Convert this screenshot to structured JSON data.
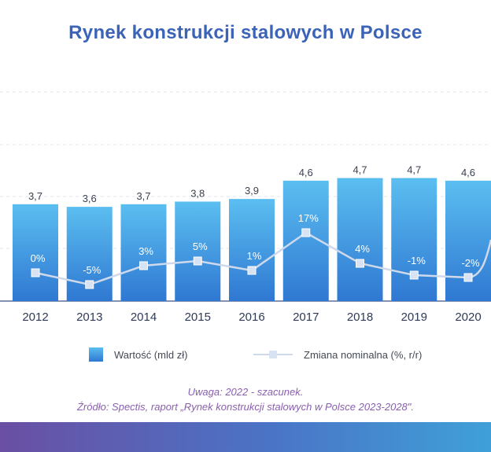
{
  "title": "Rynek konstrukcji stalowych w Polsce",
  "chart_data": {
    "type": "bar",
    "categories": [
      "2012",
      "2013",
      "2014",
      "2015",
      "2016",
      "2017",
      "2018",
      "2019",
      "2020"
    ],
    "series": [
      {
        "name": "Wartość (mld zł)",
        "type": "bar",
        "values": [
          3.7,
          3.6,
          3.7,
          3.8,
          3.9,
          4.6,
          4.7,
          4.7,
          4.6
        ],
        "labels": [
          "3,7",
          "3,6",
          "3,7",
          "3,8",
          "3,9",
          "4,6",
          "4,7",
          "4,7",
          "4,6"
        ],
        "color": "#3a8fe0"
      },
      {
        "name": "Zmiana nominalna (%, r/r)",
        "type": "line",
        "values": [
          0,
          -5,
          3,
          5,
          1,
          17,
          4,
          -1,
          -2
        ],
        "labels": [
          "0%",
          "-5%",
          "3%",
          "5%",
          "1%",
          "17%",
          "4%",
          "-1%",
          "-2%"
        ],
        "color": "#cfd9ec"
      }
    ],
    "grid": true,
    "legend_position": "bottom"
  },
  "legend": {
    "bars_label": "Wartość (mld zł)",
    "line_label": "Zmiana nominalna (%, r/r)"
  },
  "notes": {
    "line1": "Uwaga: 2022 - szacunek.",
    "line2": "Źródło: Spectis, raport „Rynek konstrukcji stalowych w Polsce 2023-2028\"."
  },
  "colors": {
    "title": "#3b63b8",
    "bar_top": "#5bbef0",
    "bar_bottom": "#2f78d2",
    "note": "#8a5fb0"
  }
}
